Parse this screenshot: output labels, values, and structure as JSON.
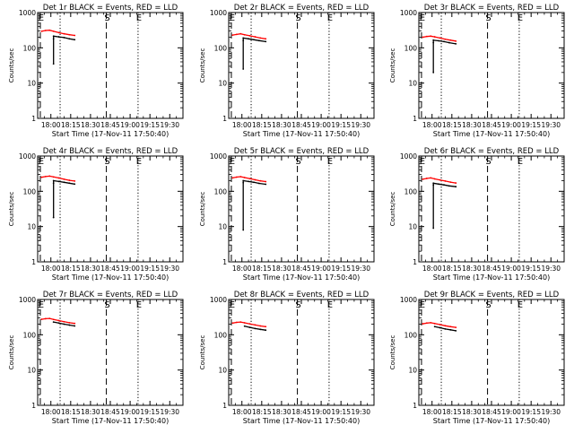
{
  "colors": {
    "events": "#000000",
    "lld": "#ff0000",
    "axes": "#000000",
    "background": "#ffffff"
  },
  "chart_data": [
    {
      "type": "line",
      "title": "Det 1r BLACK = Events, RED = LLD",
      "xlabel": "Start Time (17-Nov-11 17:50:40)",
      "ylabel": "Counts/sec",
      "yscale": "log",
      "ylim": [
        1,
        1000
      ],
      "y_ticks": [
        "1",
        "10",
        "100",
        "1000"
      ],
      "x_ticks": [
        "18:00",
        "18:15",
        "18:30",
        "18:45",
        "19:00",
        "19:15",
        "19:30"
      ],
      "markers": [
        {
          "label": "E",
          "x": "17:52",
          "style": "dashed"
        },
        {
          "label": "",
          "x": "18:07",
          "style": "dotted"
        },
        {
          "label": "S",
          "x": "18:42",
          "style": "dashed"
        },
        {
          "label": "E",
          "x": "19:06",
          "style": "dotted"
        }
      ],
      "series": [
        {
          "color": "#ff0000",
          "x": [
            "17:53",
            "17:56",
            "17:59",
            "18:02",
            "18:06",
            "18:10",
            "18:14",
            "18:18"
          ],
          "y": [
            295,
            310,
            315,
            295,
            270,
            250,
            235,
            225
          ]
        },
        {
          "color": "#000000",
          "x": [
            "18:02",
            "18:02",
            "18:02",
            "18:06",
            "18:10",
            "18:14",
            "18:18"
          ],
          "y": [
            35,
            180,
            215,
            205,
            195,
            180,
            170
          ]
        }
      ]
    },
    {
      "type": "line",
      "title": "Det 2r BLACK = Events, RED = LLD",
      "xlabel": "Start Time (17-Nov-11 17:50:40)",
      "ylabel": "Counts/sec",
      "yscale": "log",
      "ylim": [
        1,
        1000
      ],
      "y_ticks": [
        "1",
        "10",
        "100",
        "1000"
      ],
      "x_ticks": [
        "18:00",
        "18:15",
        "18:30",
        "18:45",
        "19:00",
        "19:15",
        "19:30"
      ],
      "markers": [
        {
          "label": "E",
          "x": "17:52",
          "style": "dashed"
        },
        {
          "label": "",
          "x": "18:07",
          "style": "dotted"
        },
        {
          "label": "S",
          "x": "18:42",
          "style": "dashed"
        },
        {
          "label": "E",
          "x": "19:06",
          "style": "dotted"
        }
      ],
      "series": [
        {
          "color": "#ff0000",
          "x": [
            "17:53",
            "17:56",
            "17:59",
            "18:02",
            "18:06",
            "18:10",
            "18:14",
            "18:18"
          ],
          "y": [
            230,
            240,
            250,
            235,
            220,
            205,
            190,
            180
          ]
        },
        {
          "color": "#000000",
          "x": [
            "18:01",
            "18:01",
            "18:01",
            "18:05",
            "18:09",
            "18:13",
            "18:18"
          ],
          "y": [
            25,
            160,
            190,
            180,
            170,
            160,
            150
          ]
        }
      ]
    },
    {
      "type": "line",
      "title": "Det 3r BLACK = Events, RED = LLD",
      "xlabel": "Start Time (17-Nov-11 17:50:40)",
      "ylabel": "Counts/sec",
      "yscale": "log",
      "ylim": [
        1,
        1000
      ],
      "y_ticks": [
        "1",
        "10",
        "100",
        "1000"
      ],
      "x_ticks": [
        "18:00",
        "18:15",
        "18:30",
        "18:45",
        "19:00",
        "19:15",
        "19:30"
      ],
      "markers": [
        {
          "label": "E",
          "x": "17:52",
          "style": "dashed"
        },
        {
          "label": "",
          "x": "18:07",
          "style": "dotted"
        },
        {
          "label": "S",
          "x": "18:42",
          "style": "dashed"
        },
        {
          "label": "E",
          "x": "19:06",
          "style": "dotted"
        }
      ],
      "series": [
        {
          "color": "#ff0000",
          "x": [
            "17:53",
            "17:56",
            "17:59",
            "18:02",
            "18:06",
            "18:10",
            "18:14",
            "18:18"
          ],
          "y": [
            200,
            210,
            215,
            205,
            190,
            175,
            165,
            155
          ]
        },
        {
          "color": "#000000",
          "x": [
            "18:01",
            "18:01",
            "18:01",
            "18:05",
            "18:09",
            "18:13",
            "18:18"
          ],
          "y": [
            20,
            140,
            165,
            158,
            150,
            140,
            130
          ]
        }
      ]
    },
    {
      "type": "line",
      "title": "Det 4r BLACK = Events, RED = LLD",
      "xlabel": "Start Time (17-Nov-11 17:50:40)",
      "ylabel": "Counts/sec",
      "yscale": "log",
      "ylim": [
        1,
        1000
      ],
      "y_ticks": [
        "1",
        "10",
        "100",
        "1000"
      ],
      "x_ticks": [
        "18:00",
        "18:15",
        "18:30",
        "18:45",
        "19:00",
        "19:15",
        "19:30"
      ],
      "markers": [
        {
          "label": "E",
          "x": "17:52",
          "style": "dashed"
        },
        {
          "label": "",
          "x": "18:07",
          "style": "dotted"
        },
        {
          "label": "S",
          "x": "18:42",
          "style": "dashed"
        },
        {
          "label": "E",
          "x": "19:06",
          "style": "dotted"
        }
      ],
      "series": [
        {
          "color": "#ff0000",
          "x": [
            "17:53",
            "17:56",
            "17:59",
            "18:02",
            "18:06",
            "18:10",
            "18:14",
            "18:18"
          ],
          "y": [
            250,
            262,
            270,
            255,
            238,
            220,
            205,
            195
          ]
        },
        {
          "color": "#000000",
          "x": [
            "18:02",
            "18:02",
            "18:02",
            "18:06",
            "18:10",
            "18:14",
            "18:18"
          ],
          "y": [
            18,
            170,
            200,
            190,
            180,
            170,
            160
          ]
        }
      ]
    },
    {
      "type": "line",
      "title": "Det 5r BLACK = Events, RED = LLD",
      "xlabel": "Start Time (17-Nov-11 17:50:40)",
      "ylabel": "Counts/sec",
      "yscale": "log",
      "ylim": [
        1,
        1000
      ],
      "y_ticks": [
        "1",
        "10",
        "100",
        "1000"
      ],
      "x_ticks": [
        "18:00",
        "18:15",
        "18:30",
        "18:45",
        "19:00",
        "19:15",
        "19:30"
      ],
      "markers": [
        {
          "label": "E",
          "x": "17:52",
          "style": "dashed"
        },
        {
          "label": "",
          "x": "18:07",
          "style": "dotted"
        },
        {
          "label": "S",
          "x": "18:42",
          "style": "dashed"
        },
        {
          "label": "E",
          "x": "19:06",
          "style": "dotted"
        }
      ],
      "series": [
        {
          "color": "#ff0000",
          "x": [
            "17:53",
            "17:56",
            "17:59",
            "18:02",
            "18:06",
            "18:10",
            "18:14",
            "18:18"
          ],
          "y": [
            240,
            252,
            260,
            245,
            228,
            212,
            198,
            188
          ]
        },
        {
          "color": "#000000",
          "x": [
            "18:01",
            "18:01",
            "18:01",
            "18:05",
            "18:09",
            "18:13",
            "18:18"
          ],
          "y": [
            8,
            175,
            200,
            190,
            180,
            168,
            158
          ]
        }
      ]
    },
    {
      "type": "line",
      "title": "Det 6r BLACK = Events, RED = LLD",
      "xlabel": "Start Time (17-Nov-11 17:50:40)",
      "ylabel": "Counts/sec",
      "yscale": "log",
      "ylim": [
        1,
        1000
      ],
      "y_ticks": [
        "1",
        "10",
        "100",
        "1000"
      ],
      "x_ticks": [
        "18:00",
        "18:15",
        "18:30",
        "18:45",
        "19:00",
        "19:15",
        "19:30"
      ],
      "markers": [
        {
          "label": "E",
          "x": "17:52",
          "style": "dashed"
        },
        {
          "label": "",
          "x": "18:07",
          "style": "dotted"
        },
        {
          "label": "S",
          "x": "18:42",
          "style": "dashed"
        },
        {
          "label": "E",
          "x": "19:06",
          "style": "dotted"
        }
      ],
      "series": [
        {
          "color": "#ff0000",
          "x": [
            "17:53",
            "17:56",
            "17:59",
            "18:02",
            "18:06",
            "18:10",
            "18:14",
            "18:18"
          ],
          "y": [
            220,
            232,
            240,
            225,
            210,
            195,
            182,
            172
          ]
        },
        {
          "color": "#000000",
          "x": [
            "18:01",
            "18:01",
            "18:01",
            "18:05",
            "18:09",
            "18:13",
            "18:18"
          ],
          "y": [
            9,
            150,
            170,
            160,
            152,
            142,
            135
          ]
        }
      ]
    },
    {
      "type": "line",
      "title": "Det 7r BLACK = Events, RED = LLD",
      "xlabel": "Start Time (17-Nov-11 17:50:40)",
      "ylabel": "Counts/sec",
      "yscale": "log",
      "ylim": [
        1,
        1000
      ],
      "y_ticks": [
        "1",
        "10",
        "100",
        "1000"
      ],
      "x_ticks": [
        "18:00",
        "18:15",
        "18:30",
        "18:45",
        "19:00",
        "19:15",
        "19:30"
      ],
      "markers": [
        {
          "label": "E",
          "x": "17:52",
          "style": "dashed"
        },
        {
          "label": "",
          "x": "18:07",
          "style": "dotted"
        },
        {
          "label": "S",
          "x": "18:42",
          "style": "dashed"
        },
        {
          "label": "E",
          "x": "19:06",
          "style": "dotted"
        }
      ],
      "series": [
        {
          "color": "#ff0000",
          "x": [
            "17:53",
            "17:56",
            "17:59",
            "18:02",
            "18:06",
            "18:10",
            "18:14",
            "18:18"
          ],
          "y": [
            275,
            285,
            290,
            272,
            252,
            235,
            220,
            210
          ]
        },
        {
          "color": "#000000",
          "x": [
            "18:02",
            "18:06",
            "18:10",
            "18:14",
            "18:18"
          ],
          "y": [
            230,
            215,
            200,
            188,
            178
          ]
        }
      ]
    },
    {
      "type": "line",
      "title": "Det 8r BLACK = Events, RED = LLD",
      "xlabel": "Start Time (17-Nov-11 17:50:40)",
      "ylabel": "Counts/sec",
      "yscale": "log",
      "ylim": [
        1,
        1000
      ],
      "y_ticks": [
        "1",
        "10",
        "100",
        "1000"
      ],
      "x_ticks": [
        "18:00",
        "18:15",
        "18:30",
        "18:45",
        "19:00",
        "19:15",
        "19:30"
      ],
      "markers": [
        {
          "label": "E",
          "x": "17:52",
          "style": "dashed"
        },
        {
          "label": "",
          "x": "18:07",
          "style": "dotted"
        },
        {
          "label": "S",
          "x": "18:42",
          "style": "dashed"
        },
        {
          "label": "E",
          "x": "19:06",
          "style": "dotted"
        }
      ],
      "series": [
        {
          "color": "#ff0000",
          "x": [
            "17:53",
            "17:56",
            "17:59",
            "18:02",
            "18:06",
            "18:10",
            "18:14",
            "18:18"
          ],
          "y": [
            215,
            225,
            230,
            218,
            204,
            190,
            178,
            170
          ]
        },
        {
          "color": "#000000",
          "x": [
            "18:02",
            "18:06",
            "18:10",
            "18:14",
            "18:18"
          ],
          "y": [
            175,
            162,
            150,
            142,
            135
          ]
        }
      ]
    },
    {
      "type": "line",
      "title": "Det 9r BLACK = Events, RED = LLD",
      "xlabel": "Start Time (17-Nov-11 17:50:40)",
      "ylabel": "Counts/sec",
      "yscale": "log",
      "ylim": [
        1,
        1000
      ],
      "y_ticks": [
        "1",
        "10",
        "100",
        "1000"
      ],
      "x_ticks": [
        "18:00",
        "18:15",
        "18:30",
        "18:45",
        "19:00",
        "19:15",
        "19:30"
      ],
      "markers": [
        {
          "label": "E",
          "x": "17:52",
          "style": "dashed"
        },
        {
          "label": "",
          "x": "18:07",
          "style": "dotted"
        },
        {
          "label": "S",
          "x": "18:42",
          "style": "dashed"
        },
        {
          "label": "E",
          "x": "19:06",
          "style": "dotted"
        }
      ],
      "series": [
        {
          "color": "#ff0000",
          "x": [
            "17:53",
            "17:56",
            "17:59",
            "18:02",
            "18:06",
            "18:10",
            "18:14",
            "18:18"
          ],
          "y": [
            205,
            215,
            220,
            208,
            194,
            180,
            170,
            162
          ]
        },
        {
          "color": "#000000",
          "x": [
            "18:02",
            "18:06",
            "18:10",
            "18:14",
            "18:18"
          ],
          "y": [
            170,
            158,
            146,
            138,
            130
          ]
        }
      ]
    }
  ]
}
